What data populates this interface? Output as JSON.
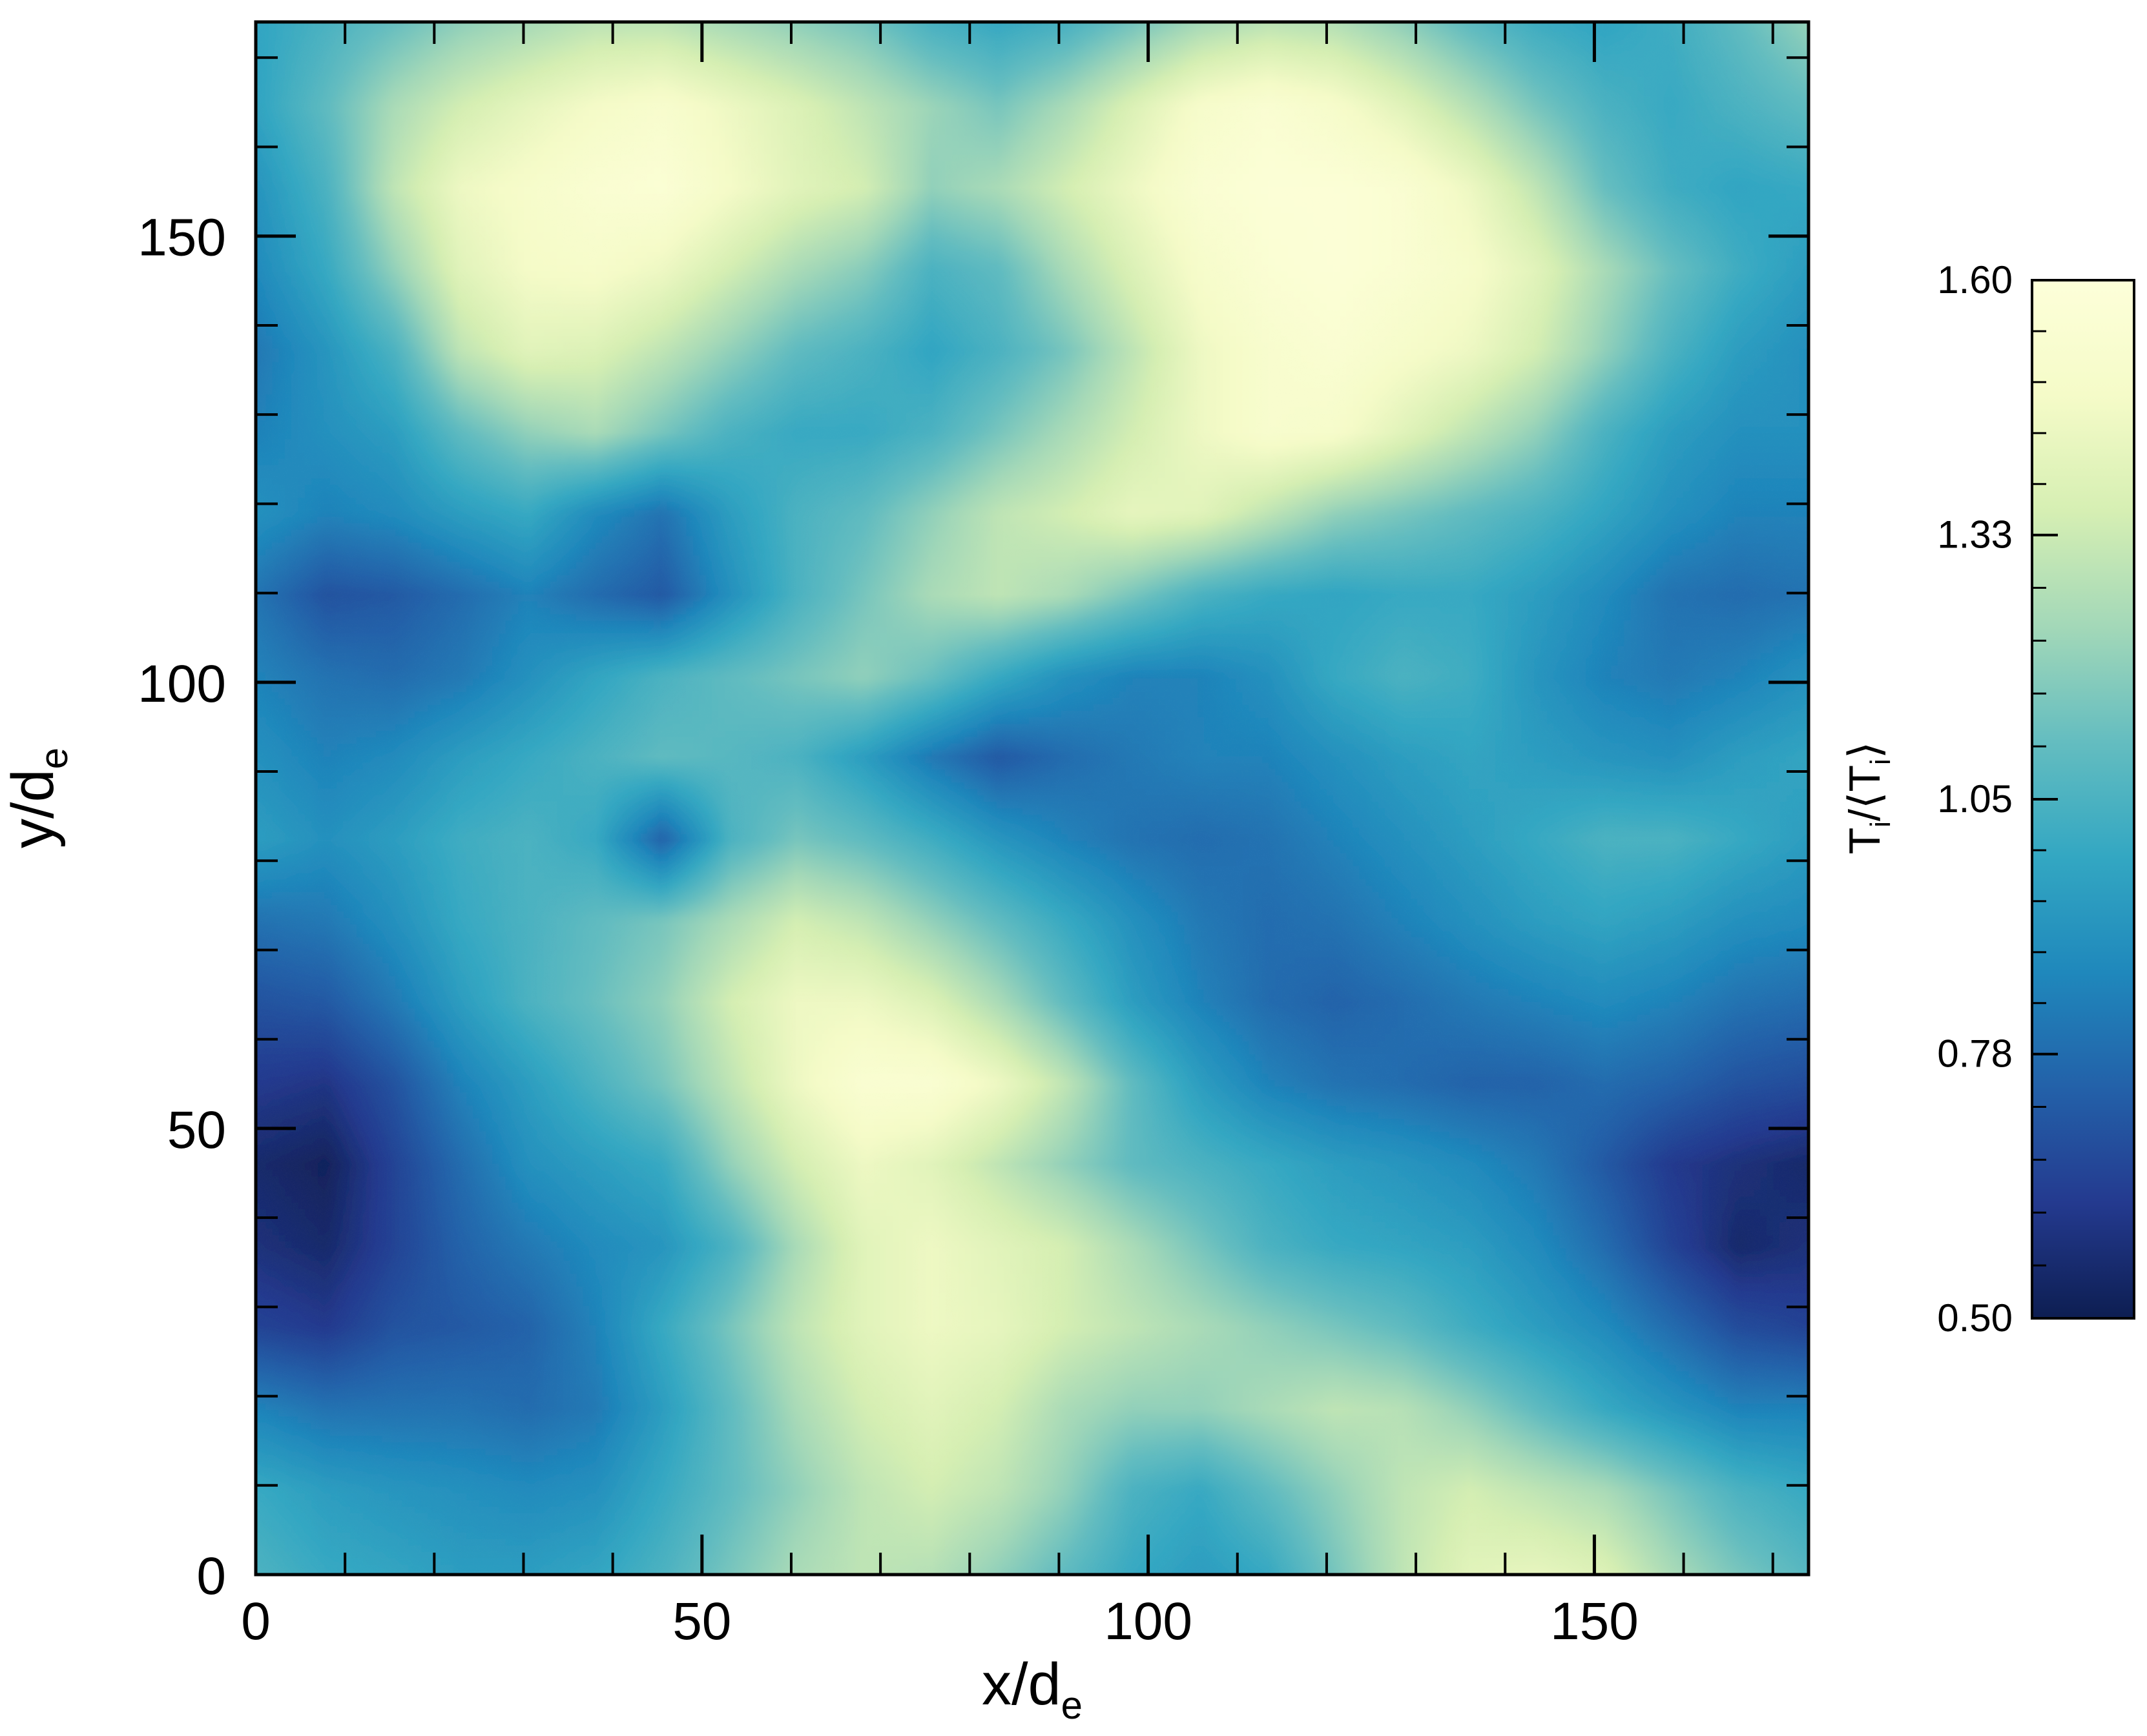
{
  "chart_data": {
    "type": "heatmap",
    "title": "",
    "xlabel": "x/d",
    "xlabel_sub": "e",
    "ylabel": "y/d",
    "ylabel_sub": "e",
    "xlim": [
      0,
      174
    ],
    "ylim": [
      0,
      174
    ],
    "xticks": [
      0,
      50,
      100,
      150
    ],
    "yticks": [
      0,
      50,
      100,
      150
    ],
    "x_tick_labels": [
      "0",
      "50",
      "100",
      "150"
    ],
    "y_tick_labels": [
      "0",
      "50",
      "100",
      "150"
    ],
    "grid": false,
    "colormap": "YlGnBu_r",
    "colormap_stops": [
      "#0d1e52",
      "#243a8f",
      "#2361a9",
      "#1f88bc",
      "#33a7c2",
      "#64bdc0",
      "#a3d8b8",
      "#d6efb3",
      "#f5fbc8",
      "#fdffd9"
    ],
    "colorbar": {
      "label": "T",
      "label_sub1": "i",
      "label_mid": "/⟨T",
      "label_sub2": "i",
      "label_end": "⟩",
      "range": [
        0.5,
        1.6
      ],
      "ticks": [
        0.5,
        0.78,
        1.05,
        1.33,
        1.6
      ],
      "tick_labels": [
        "0.50",
        "0.78",
        "1.05",
        "1.33",
        "1.60"
      ]
    },
    "field": [
      [
        0.98,
        1.05,
        1.12,
        1.2,
        1.25,
        1.3,
        1.3,
        1.25,
        1.2,
        1.15,
        1.05,
        1.0,
        1.05,
        1.15,
        1.25,
        1.3,
        1.28,
        1.2,
        1.1,
        1.02,
        0.98,
        1.02,
        1.1,
        1.2
      ],
      [
        0.98,
        1.1,
        1.25,
        1.35,
        1.42,
        1.48,
        1.52,
        1.45,
        1.38,
        1.3,
        1.22,
        1.15,
        1.25,
        1.38,
        1.5,
        1.55,
        1.5,
        1.4,
        1.28,
        1.15,
        1.05,
        1.0,
        1.05,
        1.1
      ],
      [
        0.92,
        1.05,
        1.3,
        1.45,
        1.5,
        1.55,
        1.57,
        1.48,
        1.4,
        1.35,
        1.2,
        1.25,
        1.35,
        1.45,
        1.55,
        1.58,
        1.58,
        1.55,
        1.45,
        1.3,
        1.12,
        1.02,
        0.98,
        1.0
      ],
      [
        0.88,
        1.0,
        1.2,
        1.4,
        1.48,
        1.5,
        1.45,
        1.35,
        1.25,
        1.18,
        1.05,
        1.1,
        1.25,
        1.38,
        1.5,
        1.56,
        1.58,
        1.55,
        1.5,
        1.4,
        1.25,
        1.12,
        1.02,
        0.95
      ],
      [
        0.82,
        0.92,
        1.05,
        1.3,
        1.4,
        1.38,
        1.3,
        1.2,
        1.1,
        1.05,
        0.98,
        1.05,
        1.15,
        1.3,
        1.45,
        1.52,
        1.55,
        1.5,
        1.45,
        1.35,
        1.2,
        1.05,
        0.95,
        0.9
      ],
      [
        0.85,
        0.9,
        0.95,
        1.1,
        1.2,
        1.25,
        1.15,
        1.05,
        1.0,
        1.0,
        1.05,
        1.15,
        1.25,
        1.35,
        1.45,
        1.52,
        1.5,
        1.4,
        1.3,
        1.2,
        1.05,
        0.95,
        0.9,
        0.9
      ],
      [
        0.9,
        0.85,
        0.88,
        0.95,
        1.0,
        0.88,
        0.8,
        0.95,
        1.05,
        1.1,
        1.2,
        1.3,
        1.35,
        1.42,
        1.4,
        1.3,
        1.2,
        1.15,
        1.1,
        1.05,
        0.98,
        0.9,
        0.85,
        0.85
      ],
      [
        0.8,
        0.7,
        0.72,
        0.78,
        0.85,
        0.78,
        0.72,
        0.9,
        1.05,
        1.15,
        1.25,
        1.3,
        1.25,
        1.15,
        1.05,
        1.0,
        0.98,
        1.0,
        1.0,
        0.95,
        0.88,
        0.8,
        0.78,
        0.8
      ],
      [
        0.85,
        0.8,
        0.78,
        0.82,
        0.9,
        0.98,
        1.05,
        1.1,
        1.15,
        1.2,
        1.12,
        1.0,
        0.9,
        0.85,
        0.85,
        0.9,
        1.0,
        1.05,
        1.02,
        0.92,
        0.85,
        0.82,
        0.85,
        0.9
      ],
      [
        0.9,
        0.85,
        0.88,
        0.95,
        1.0,
        1.05,
        1.1,
        1.08,
        1.05,
        0.95,
        0.82,
        0.72,
        0.78,
        0.82,
        0.85,
        0.85,
        0.9,
        0.95,
        0.98,
        0.95,
        0.92,
        0.9,
        0.95,
        0.98
      ],
      [
        0.95,
        0.9,
        0.95,
        1.02,
        1.05,
        1.0,
        0.75,
        1.05,
        1.15,
        1.1,
        1.02,
        0.92,
        0.85,
        0.8,
        0.78,
        0.8,
        0.85,
        0.9,
        0.95,
        1.0,
        1.05,
        1.05,
        1.0,
        0.95
      ],
      [
        0.8,
        0.82,
        0.9,
        1.0,
        1.05,
        1.1,
        1.15,
        1.25,
        1.35,
        1.3,
        1.2,
        1.1,
        1.0,
        0.9,
        0.82,
        0.78,
        0.8,
        0.85,
        0.9,
        0.95,
        0.98,
        0.95,
        0.9,
        0.88
      ],
      [
        0.7,
        0.72,
        0.82,
        0.95,
        1.05,
        1.12,
        1.2,
        1.35,
        1.45,
        1.45,
        1.38,
        1.25,
        1.1,
        0.95,
        0.85,
        0.78,
        0.75,
        0.78,
        0.82,
        0.85,
        0.88,
        0.85,
        0.8,
        0.78
      ],
      [
        0.62,
        0.6,
        0.7,
        0.85,
        0.95,
        1.05,
        1.15,
        1.3,
        1.45,
        1.55,
        1.55,
        1.45,
        1.3,
        1.1,
        0.95,
        0.85,
        0.8,
        0.78,
        0.75,
        0.75,
        0.78,
        0.75,
        0.7,
        0.68
      ],
      [
        0.55,
        0.52,
        0.65,
        0.78,
        0.9,
        0.95,
        1.0,
        1.2,
        1.35,
        1.45,
        1.4,
        1.3,
        1.2,
        1.1,
        1.05,
        1.0,
        0.95,
        0.92,
        0.88,
        0.82,
        0.72,
        0.62,
        0.58,
        0.55
      ],
      [
        0.58,
        0.55,
        0.65,
        0.75,
        0.82,
        0.88,
        0.92,
        1.05,
        1.25,
        1.4,
        1.45,
        1.4,
        1.35,
        1.25,
        1.15,
        1.05,
        1.0,
        0.98,
        0.95,
        0.88,
        0.78,
        0.65,
        0.55,
        0.58
      ],
      [
        0.65,
        0.62,
        0.7,
        0.72,
        0.75,
        0.85,
        1.0,
        1.15,
        1.3,
        1.4,
        1.45,
        1.42,
        1.35,
        1.3,
        1.25,
        1.2,
        1.15,
        1.1,
        1.02,
        0.95,
        0.88,
        0.78,
        0.68,
        0.65
      ],
      [
        0.85,
        0.8,
        0.8,
        0.8,
        0.78,
        0.82,
        0.95,
        1.1,
        1.25,
        1.35,
        1.4,
        1.35,
        1.25,
        1.2,
        1.2,
        1.25,
        1.3,
        1.28,
        1.2,
        1.1,
        1.0,
        0.92,
        0.85,
        0.85
      ],
      [
        1.0,
        0.95,
        0.92,
        0.9,
        0.88,
        0.9,
        1.0,
        1.1,
        1.2,
        1.3,
        1.35,
        1.3,
        1.2,
        1.05,
        1.0,
        1.1,
        1.2,
        1.3,
        1.35,
        1.3,
        1.25,
        1.15,
        1.05,
        1.0
      ],
      [
        1.05,
        1.0,
        0.98,
        0.95,
        0.95,
        0.98,
        1.05,
        1.15,
        1.25,
        1.3,
        1.28,
        1.2,
        1.1,
        1.0,
        0.95,
        1.0,
        1.15,
        1.3,
        1.4,
        1.42,
        1.38,
        1.25,
        1.15,
        1.08
      ]
    ]
  }
}
